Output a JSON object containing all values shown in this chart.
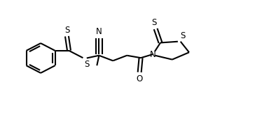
{
  "bg_color": "#ffffff",
  "line_color": "#000000",
  "line_width": 1.5,
  "text_color": "#000000",
  "font_size": 8.5,
  "xlim": [
    0,
    10
  ],
  "ylim": [
    0,
    5
  ]
}
